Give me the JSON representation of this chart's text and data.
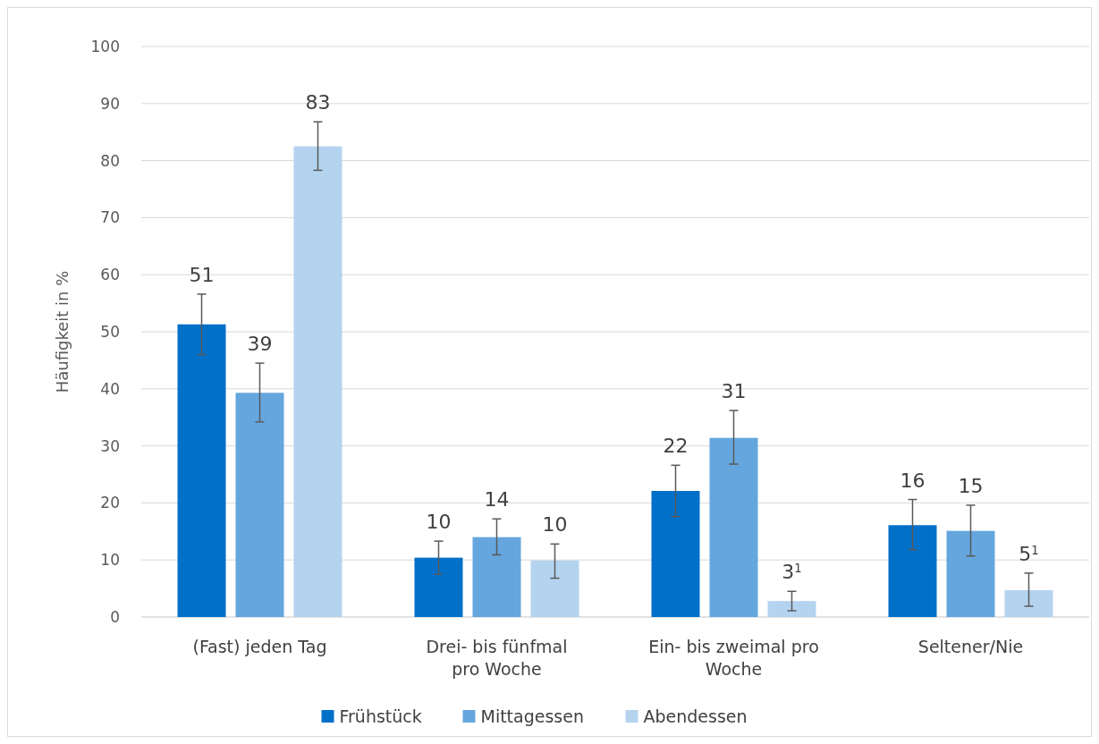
{
  "chart_data": {
    "type": "bar",
    "ylabel": "Häufigkeit in %",
    "categories": [
      "(Fast) jeden Tag",
      "Drei- bis fünfmal pro Woche",
      "Ein- bis zweimal pro Woche",
      "Seltener/Nie"
    ],
    "series": [
      {
        "name": "Frühstück",
        "color": "#0070c9",
        "values": [
          51.3,
          10.4,
          22.1,
          16.1
        ],
        "errors": [
          [
            46,
            56.6
          ],
          [
            7.5,
            13.3
          ],
          [
            17.6,
            26.6
          ],
          [
            11.8,
            20.6
          ]
        ],
        "value_labels": [
          "51",
          "10",
          "22",
          "16"
        ]
      },
      {
        "name": "Mittagessen",
        "color": "#65a6de",
        "values": [
          39.3,
          14,
          31.4,
          15.1
        ],
        "errors": [
          [
            34.2,
            44.5
          ],
          [
            10.9,
            17.2
          ],
          [
            26.8,
            36.2
          ],
          [
            10.7,
            19.6
          ]
        ],
        "value_labels": [
          "39",
          "14",
          "31",
          "15"
        ]
      },
      {
        "name": "Abendessen",
        "color": "#b4d3ef",
        "values": [
          82.5,
          9.9,
          2.8,
          4.7
        ],
        "errors": [
          [
            78.3,
            86.8
          ],
          [
            6.8,
            12.8
          ],
          [
            1.1,
            4.5
          ],
          [
            1.9,
            7.7
          ]
        ],
        "value_labels": [
          "83",
          "10",
          "3$^{1}$",
          "5$^{1}$"
        ]
      }
    ],
    "ylim": [
      0,
      100
    ],
    "yticks": [
      0,
      10,
      20,
      30,
      40,
      50,
      60,
      70,
      80,
      90,
      100
    ],
    "grid": "y",
    "legend": "bottom"
  }
}
